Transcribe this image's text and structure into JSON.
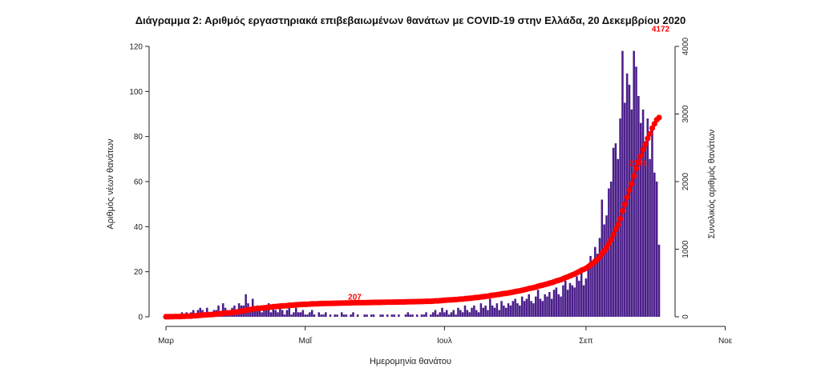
{
  "chart_data": {
    "type": "bar",
    "title": "Διάγραμμα 2: Αριθμός εργαστηριακά επιβεβαιωμένων θανάτων με COVID-19 στην Ελλάδα, 20 Δεκεμβρίου 2020",
    "xlabel": "Ημερομηνία θανάτου",
    "ylabel": "Αριθμός νέων θανάτων",
    "y2label": "Συνολικός αριθμός θανάτων",
    "x_tick_labels": [
      "Μαρ",
      "Μαΐ",
      "Ιουλ",
      "Σεπ",
      "Νοε"
    ],
    "x_start": "2020-03-01",
    "ylim": [
      0,
      120
    ],
    "yticks": [
      0,
      20,
      40,
      60,
      80,
      100,
      120
    ],
    "y2lim": [
      0,
      4000
    ],
    "y2ticks": [
      0,
      1000,
      2000,
      3000,
      4000
    ],
    "bar_color": "#4B1F8A",
    "line_color": "#FF0000",
    "daily_deaths": [
      1,
      0,
      1,
      0,
      1,
      0,
      1,
      2,
      1,
      2,
      0,
      2,
      3,
      1,
      3,
      4,
      3,
      2,
      4,
      1,
      1,
      3,
      3,
      5,
      2,
      6,
      4,
      2,
      1,
      4,
      5,
      3,
      6,
      5,
      5,
      10,
      6,
      4,
      8,
      3,
      5,
      4,
      2,
      4,
      3,
      6,
      2,
      5,
      3,
      2,
      4,
      3,
      1,
      3,
      5,
      1,
      2,
      4,
      2,
      2,
      3,
      1,
      1,
      2,
      3,
      1,
      0,
      2,
      1,
      1,
      2,
      0,
      1,
      0,
      1,
      1,
      0,
      2,
      1,
      1,
      0,
      1,
      2,
      0,
      1,
      0,
      0,
      1,
      1,
      0,
      1,
      1,
      0,
      0,
      1,
      1,
      0,
      1,
      0,
      1,
      1,
      0,
      1,
      0,
      0,
      1,
      2,
      1,
      1,
      0,
      1,
      0,
      1,
      1,
      2,
      0,
      1,
      2,
      3,
      1,
      2,
      4,
      2,
      3,
      1,
      2,
      3,
      1,
      4,
      3,
      2,
      5,
      3,
      2,
      4,
      5,
      3,
      2,
      6,
      4,
      5,
      3,
      8,
      5,
      4,
      6,
      3,
      7,
      5,
      4,
      6,
      5,
      7,
      8,
      6,
      5,
      9,
      7,
      8,
      10,
      7,
      6,
      9,
      12,
      8,
      7,
      10,
      9,
      11,
      8,
      12,
      13,
      10,
      9,
      14,
      16,
      12,
      15,
      14,
      13,
      18,
      16,
      20,
      14,
      17,
      22,
      27,
      24,
      31,
      28,
      35,
      52,
      41,
      45,
      57,
      60,
      75,
      77,
      70,
      88,
      118,
      95,
      108,
      103,
      92,
      118,
      111,
      98,
      86,
      92,
      78,
      88,
      70,
      84,
      64,
      60,
      32
    ],
    "cumulative_annotations": [
      {
        "label": "207",
        "value": 207
      },
      {
        "label": "2183",
        "value": 2183
      },
      {
        "label": "4172",
        "value": 4172
      }
    ]
  }
}
